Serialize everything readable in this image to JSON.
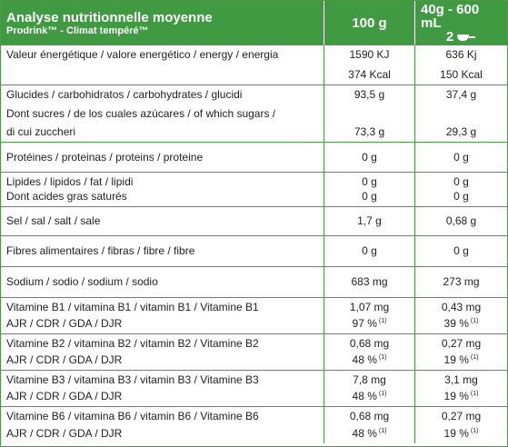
{
  "header": {
    "title": "Analyse nutritionnelle moyenne",
    "subtitle": "Prodrink™ - Climat tempéré™",
    "col1": "100 g",
    "col2": "40g - 600 mL",
    "col2_sub": "2"
  },
  "rows": [
    {
      "label": [
        "Valeur énergétique / valore energético / energy / energia"
      ],
      "col1": [
        {
          "text": "1590 KJ"
        },
        {
          "text": "374 Kcal"
        }
      ],
      "col2": [
        {
          "text": "636 Kj"
        },
        {
          "text": "150 Kcal"
        }
      ]
    },
    {
      "label": [
        "Glucides / carbohidratos / carbohydrates / glucidi",
        "Dont sucres / de los cuales azúcares / of which sugars /",
        "di cui zuccheri"
      ],
      "col1": [
        {
          "text": "93,5 g"
        },
        {
          "text": "73,3 g"
        }
      ],
      "col2": [
        {
          "text": "37,4 g"
        },
        {
          "text": "29,3 g"
        }
      ]
    },
    {
      "label": [
        "Protéines / proteinas / proteins / proteine"
      ],
      "col1": [
        {
          "text": "0 g"
        }
      ],
      "col2": [
        {
          "text": "0 g"
        }
      ]
    },
    {
      "label": [
        "Lipides / lipidos / fat / lipidi",
        "Dont acides gras saturés"
      ],
      "col1": [
        {
          "text": "0 g"
        },
        {
          "text": "0 g"
        }
      ],
      "col2": [
        {
          "text": "0 g"
        },
        {
          "text": "0 g"
        }
      ]
    },
    {
      "label": [
        "Sel / sal / salt / sale"
      ],
      "col1": [
        {
          "text": "1,7 g"
        }
      ],
      "col2": [
        {
          "text": "0,68 g"
        }
      ]
    },
    {
      "label": [
        "Fibres alimentaires / fibras / fibre / fibre"
      ],
      "col1": [
        {
          "text": "0 g"
        }
      ],
      "col2": [
        {
          "text": "0 g"
        }
      ]
    },
    {
      "label": [
        "Sodium / sodio / sodium / sodio"
      ],
      "col1": [
        {
          "text": "683 mg"
        }
      ],
      "col2": [
        {
          "text": "273 mg"
        }
      ]
    },
    {
      "label": [
        "Vitamine B1 / vitamina B1 / vitamin B1 / Vitamine B1",
        "AJR / CDR / GDA / DJR"
      ],
      "col1": [
        {
          "text": "1,07 mg"
        },
        {
          "text": "97 %",
          "note": "(1)"
        }
      ],
      "col2": [
        {
          "text": "0,43 mg"
        },
        {
          "text": "39 %",
          "note": "(1)"
        }
      ]
    },
    {
      "label": [
        "Vitamine B2 / vitamina B2 / vitamin B2 / Vitamine B2",
        "AJR / CDR / GDA / DJR"
      ],
      "col1": [
        {
          "text": "0,68 mg"
        },
        {
          "text": "48 %",
          "note": "(1)"
        }
      ],
      "col2": [
        {
          "text": "0,27 mg"
        },
        {
          "text": "19 %",
          "note": "(1)"
        }
      ]
    },
    {
      "label": [
        "Vitamine B3 / vitamina B3 / vitamin B3 / Vitamine B3",
        "AJR / CDR / GDA / DJR"
      ],
      "col1": [
        {
          "text": "7,8 mg"
        },
        {
          "text": "48 %",
          "note": "(1)"
        }
      ],
      "col2": [
        {
          "text": "3,1 mg"
        },
        {
          "text": "19 %",
          "note": "(1)"
        }
      ]
    },
    {
      "label": [
        "Vitamine B6 / vitamina B6 / vitamin B6 / Vitamine B6",
        "AJR / CDR / GDA / DJR"
      ],
      "col1": [
        {
          "text": "0,68 mg"
        },
        {
          "text": "48 %",
          "note": "(1)"
        }
      ],
      "col2": [
        {
          "text": "0,27 mg"
        },
        {
          "text": "19 %",
          "note": "(1)"
        }
      ]
    }
  ]
}
